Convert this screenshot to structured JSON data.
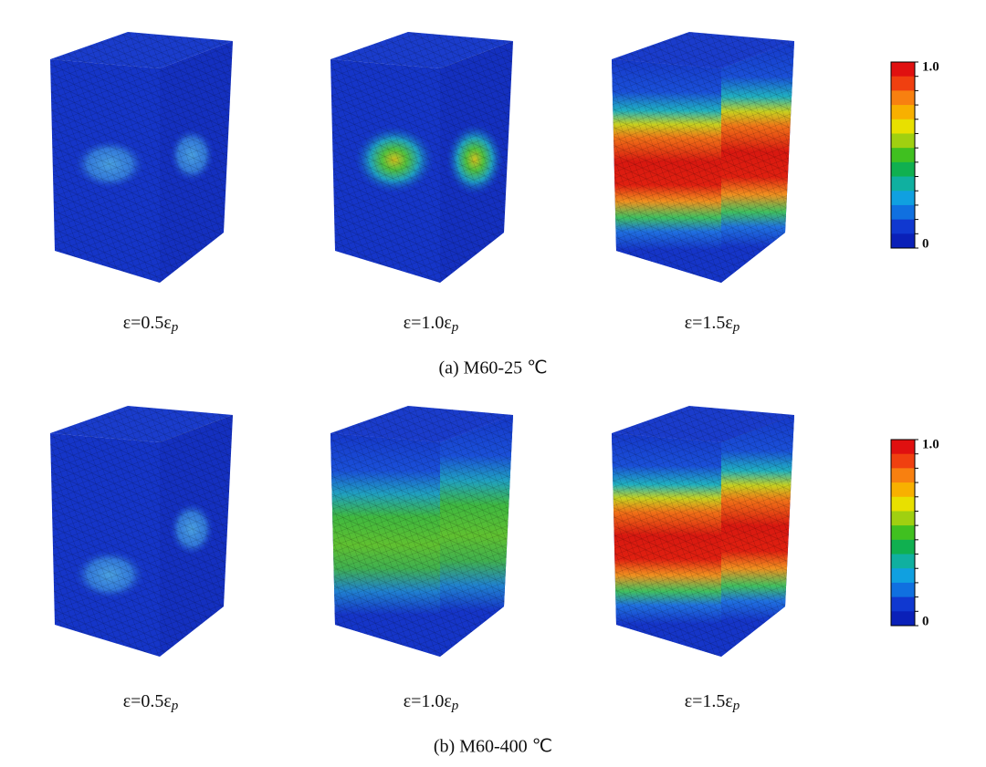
{
  "panels": [
    {
      "caption": "(a) M60-25 ℃",
      "images": [
        {
          "label": "ε=0.5ε",
          "label_sub": "p"
        },
        {
          "label": "ε=1.0ε",
          "label_sub": "p"
        },
        {
          "label": "ε=1.5ε",
          "label_sub": "p"
        }
      ],
      "colorbar": {
        "max_label": "1.0",
        "min_label": "0"
      }
    },
    {
      "caption": "(b) M60-400 ℃",
      "images": [
        {
          "label": "ε=0.5ε",
          "label_sub": "p"
        },
        {
          "label": "ε=1.0ε",
          "label_sub": "p"
        },
        {
          "label": "ε=1.5ε",
          "label_sub": "p"
        }
      ],
      "colorbar": {
        "max_label": "1.0",
        "min_label": "0"
      }
    }
  ]
}
